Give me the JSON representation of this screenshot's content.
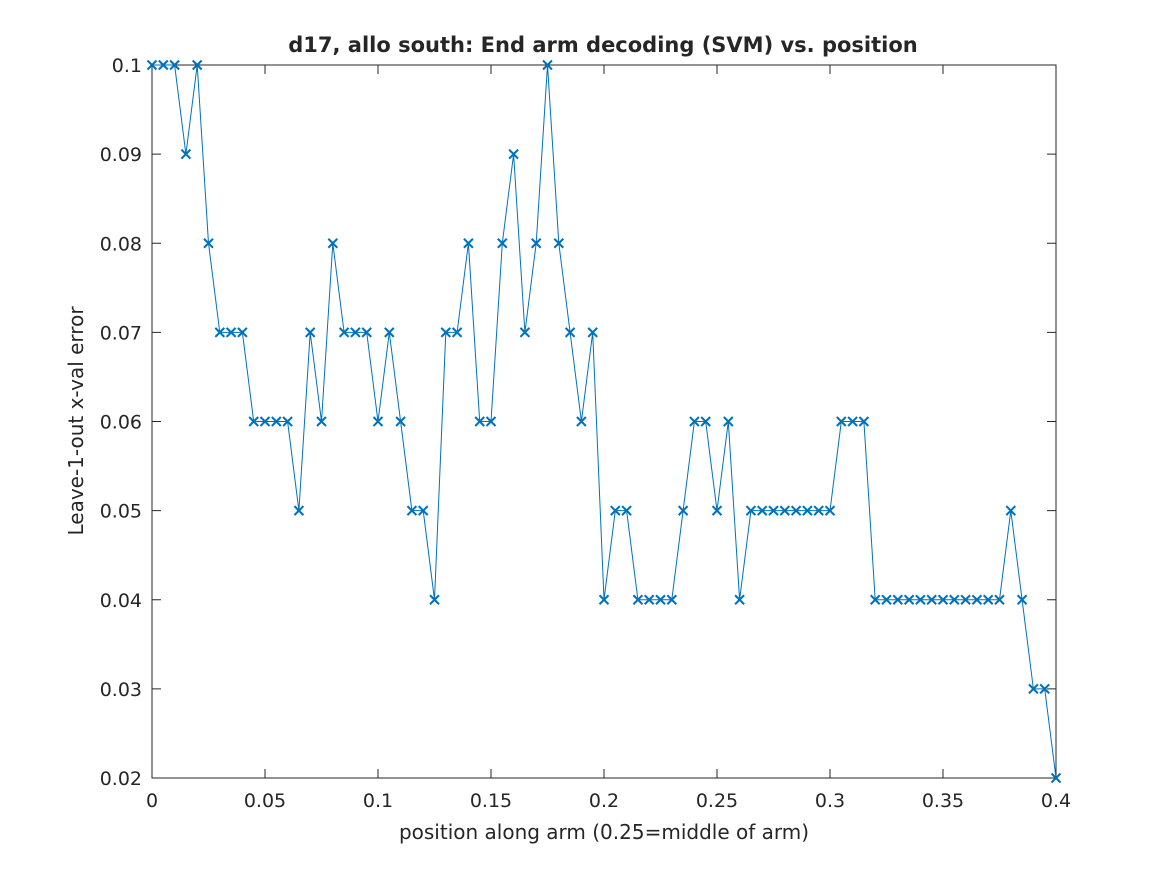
{
  "chart_data": {
    "type": "line",
    "title": "d17, allo south: End arm decoding (SVM) vs. position",
    "xlabel": "position along arm (0.25=middle of arm)",
    "ylabel": "Leave-1-out x-val error",
    "xlim": [
      0,
      0.4
    ],
    "ylim": [
      0.02,
      0.1
    ],
    "x_ticks": [
      0,
      0.05,
      0.1,
      0.15,
      0.2,
      0.25,
      0.3,
      0.35,
      0.4
    ],
    "x_tick_labels": [
      "0",
      "0.05",
      "0.1",
      "0.15",
      "0.2",
      "0.25",
      "0.3",
      "0.35",
      "0.4"
    ],
    "y_ticks": [
      0.02,
      0.03,
      0.04,
      0.05,
      0.06,
      0.07,
      0.08,
      0.09,
      0.1
    ],
    "y_tick_labels": [
      "0.02",
      "0.03",
      "0.04",
      "0.05",
      "0.06",
      "0.07",
      "0.08",
      "0.09",
      "0.1"
    ],
    "grid": false,
    "marker": "x",
    "line_color": "#0072BD",
    "x": [
      0,
      0.005,
      0.01,
      0.015,
      0.02,
      0.025,
      0.03,
      0.035,
      0.04,
      0.045,
      0.05,
      0.055,
      0.06,
      0.065,
      0.07,
      0.075,
      0.08,
      0.085,
      0.09,
      0.095,
      0.1,
      0.105,
      0.11,
      0.115,
      0.12,
      0.125,
      0.13,
      0.135,
      0.14,
      0.145,
      0.15,
      0.155,
      0.16,
      0.165,
      0.17,
      0.175,
      0.18,
      0.185,
      0.19,
      0.195,
      0.2,
      0.205,
      0.21,
      0.215,
      0.22,
      0.225,
      0.23,
      0.235,
      0.24,
      0.245,
      0.25,
      0.255,
      0.26,
      0.265,
      0.27,
      0.275,
      0.28,
      0.285,
      0.29,
      0.295,
      0.3,
      0.305,
      0.31,
      0.315,
      0.32,
      0.325,
      0.33,
      0.335,
      0.34,
      0.345,
      0.35,
      0.355,
      0.36,
      0.365,
      0.37,
      0.375,
      0.38,
      0.385,
      0.39,
      0.395,
      0.4
    ],
    "y": [
      0.1,
      0.1,
      0.1,
      0.09,
      0.1,
      0.08,
      0.07,
      0.07,
      0.07,
      0.06,
      0.06,
      0.06,
      0.06,
      0.05,
      0.07,
      0.06,
      0.08,
      0.07,
      0.07,
      0.07,
      0.06,
      0.07,
      0.06,
      0.05,
      0.05,
      0.04,
      0.07,
      0.07,
      0.08,
      0.06,
      0.06,
      0.08,
      0.09,
      0.07,
      0.08,
      0.1,
      0.08,
      0.07,
      0.06,
      0.07,
      0.04,
      0.05,
      0.05,
      0.04,
      0.04,
      0.04,
      0.04,
      0.05,
      0.06,
      0.06,
      0.05,
      0.06,
      0.04,
      0.05,
      0.05,
      0.05,
      0.05,
      0.05,
      0.05,
      0.05,
      0.05,
      0.06,
      0.06,
      0.06,
      0.04,
      0.04,
      0.04,
      0.04,
      0.04,
      0.04,
      0.04,
      0.04,
      0.04,
      0.04,
      0.04,
      0.04,
      0.05,
      0.04,
      0.03,
      0.03,
      0.02
    ]
  }
}
